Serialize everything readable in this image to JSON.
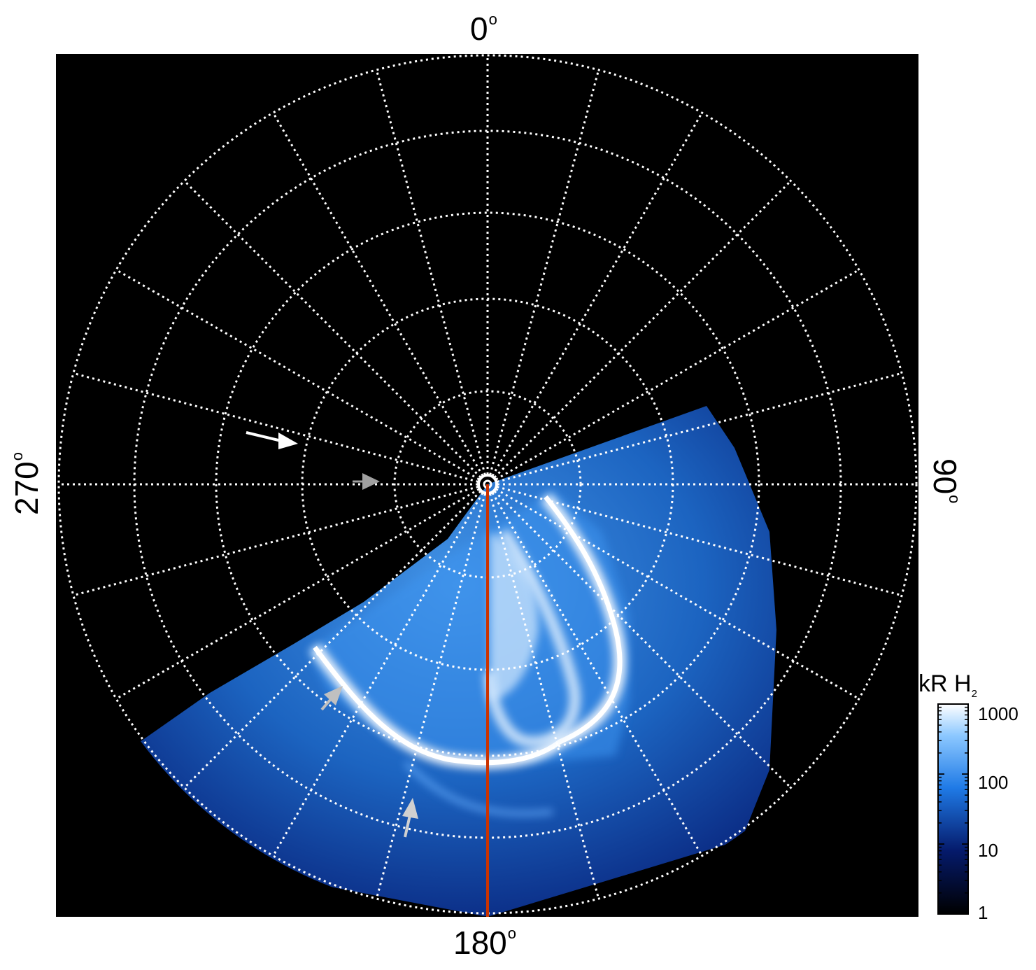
{
  "labels": {
    "top": "0",
    "right": "90",
    "bottom": "180",
    "left": "270",
    "degree_mark": "o"
  },
  "colorbar": {
    "title": "kR H",
    "title_subscript": "2",
    "ticks": [
      "1000",
      "100",
      "10",
      "1"
    ],
    "scale": "log",
    "range": [
      1,
      1000
    ]
  },
  "colors": {
    "background": "#000000",
    "grid": "#ffffff",
    "meridian": "#cc3300",
    "aurora_dark": "#0a2a8c",
    "aurora_mid": "#1f7ae6",
    "aurora_bright": "#ffffff",
    "arrow_white": "#ffffff",
    "arrow_gray": "#a0a0a0"
  }
}
